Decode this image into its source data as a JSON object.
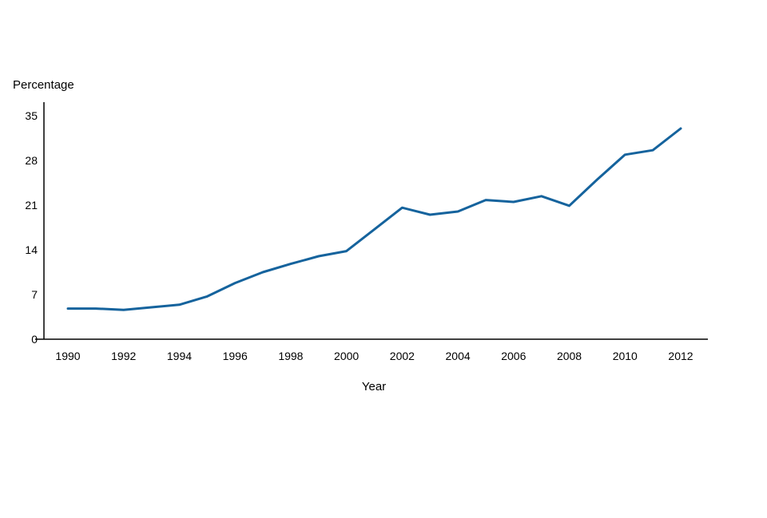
{
  "chart_data": {
    "type": "line",
    "title": "",
    "xlabel": "Year",
    "ylabel": "Percentage",
    "x": [
      1990,
      1991,
      1992,
      1993,
      1994,
      1995,
      1996,
      1997,
      1998,
      1999,
      2000,
      2001,
      2002,
      2003,
      2004,
      2005,
      2006,
      2007,
      2008,
      2009,
      2010,
      2011,
      2012
    ],
    "values": [
      4.8,
      4.8,
      4.6,
      5.0,
      5.4,
      6.7,
      8.8,
      10.5,
      11.8,
      13.0,
      13.8,
      17.2,
      20.6,
      19.5,
      20.0,
      21.8,
      21.5,
      22.4,
      20.9,
      25.0,
      28.9,
      29.6,
      33.0
    ],
    "xticks": [
      1990,
      1992,
      1994,
      1996,
      1998,
      2000,
      2002,
      2004,
      2006,
      2008,
      2010,
      2012
    ],
    "yticks": [
      0,
      7,
      14,
      21,
      28,
      35
    ],
    "xlim": [
      1990,
      2012
    ],
    "ylim": [
      0,
      35
    ],
    "grid": false,
    "legend": "none",
    "line_color": "#15639d",
    "axis_color": "#000000"
  }
}
